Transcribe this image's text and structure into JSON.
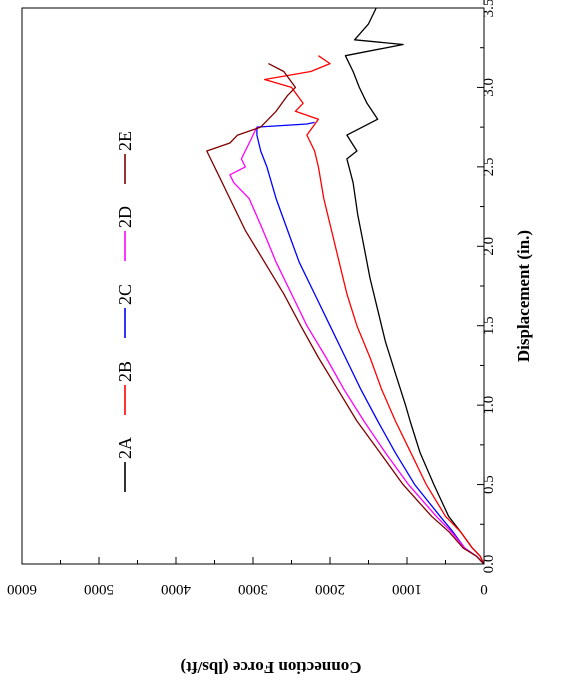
{
  "chart_data": {
    "type": "line",
    "orientation": "rotated-90-clockwise",
    "xlabel": "Displacement (in.)",
    "ylabel": "Connection Force (lbs/ft)",
    "xlim": [
      0,
      3.5
    ],
    "ylim": [
      0,
      6000
    ],
    "x_ticks": [
      "0.0",
      "0.5",
      "1.0",
      "1.5",
      "2.0",
      "2.5",
      "3.0",
      "3.5"
    ],
    "y_ticks": [
      "0",
      "1000",
      "2000",
      "3000",
      "4000",
      "5000",
      "6000"
    ],
    "grid": false,
    "legend_placement": "top-left",
    "series": [
      {
        "name": "2A",
        "color": "#000000",
        "points": [
          [
            0,
            0
          ],
          [
            0.05,
            50
          ],
          [
            0.1,
            150
          ],
          [
            0.2,
            300
          ],
          [
            0.3,
            460
          ],
          [
            0.5,
            650
          ],
          [
            0.7,
            830
          ],
          [
            0.9,
            960
          ],
          [
            1.0,
            1020
          ],
          [
            1.2,
            1150
          ],
          [
            1.4,
            1280
          ],
          [
            1.6,
            1380
          ],
          [
            1.8,
            1480
          ],
          [
            2.0,
            1560
          ],
          [
            2.2,
            1640
          ],
          [
            2.4,
            1700
          ],
          [
            2.55,
            1780
          ],
          [
            2.6,
            1650
          ],
          [
            2.7,
            1780
          ],
          [
            2.8,
            1380
          ],
          [
            2.9,
            1520
          ],
          [
            3.0,
            1620
          ],
          [
            3.1,
            1700
          ],
          [
            3.2,
            1800
          ],
          [
            3.27,
            1050
          ],
          [
            3.3,
            1680
          ],
          [
            3.4,
            1500
          ],
          [
            3.5,
            1400
          ]
        ]
      },
      {
        "name": "2B",
        "color": "#ff0000",
        "points": [
          [
            0,
            0
          ],
          [
            0.05,
            50
          ],
          [
            0.1,
            150
          ],
          [
            0.2,
            300
          ],
          [
            0.3,
            500
          ],
          [
            0.5,
            750
          ],
          [
            0.7,
            950
          ],
          [
            0.9,
            1150
          ],
          [
            1.1,
            1330
          ],
          [
            1.3,
            1480
          ],
          [
            1.5,
            1650
          ],
          [
            1.7,
            1780
          ],
          [
            1.9,
            1880
          ],
          [
            2.1,
            1980
          ],
          [
            2.3,
            2080
          ],
          [
            2.5,
            2150
          ],
          [
            2.6,
            2200
          ],
          [
            2.7,
            2300
          ],
          [
            2.8,
            2150
          ],
          [
            2.85,
            2450
          ],
          [
            2.9,
            2350
          ],
          [
            3.0,
            2500
          ],
          [
            3.05,
            2850
          ],
          [
            3.1,
            2250
          ],
          [
            3.15,
            2000
          ],
          [
            3.2,
            2150
          ]
        ]
      },
      {
        "name": "2C",
        "color": "#0000ff",
        "points": [
          [
            0,
            0
          ],
          [
            0.05,
            100
          ],
          [
            0.1,
            250
          ],
          [
            0.2,
            400
          ],
          [
            0.3,
            570
          ],
          [
            0.5,
            900
          ],
          [
            0.7,
            1150
          ],
          [
            0.9,
            1380
          ],
          [
            1.1,
            1600
          ],
          [
            1.3,
            1800
          ],
          [
            1.5,
            2000
          ],
          [
            1.7,
            2200
          ],
          [
            1.9,
            2400
          ],
          [
            2.1,
            2550
          ],
          [
            2.3,
            2700
          ],
          [
            2.5,
            2820
          ],
          [
            2.6,
            2900
          ],
          [
            2.7,
            2950
          ],
          [
            2.75,
            2950
          ],
          [
            2.77,
            2300
          ],
          [
            2.78,
            2200
          ]
        ]
      },
      {
        "name": "2D",
        "color": "#ff00ff",
        "points": [
          [
            0,
            0
          ],
          [
            0.05,
            100
          ],
          [
            0.1,
            250
          ],
          [
            0.2,
            420
          ],
          [
            0.3,
            620
          ],
          [
            0.5,
            980
          ],
          [
            0.7,
            1280
          ],
          [
            0.9,
            1560
          ],
          [
            1.1,
            1820
          ],
          [
            1.3,
            2050
          ],
          [
            1.5,
            2300
          ],
          [
            1.7,
            2500
          ],
          [
            1.9,
            2700
          ],
          [
            2.1,
            2870
          ],
          [
            2.3,
            3050
          ],
          [
            2.4,
            3250
          ],
          [
            2.45,
            3300
          ],
          [
            2.5,
            3100
          ],
          [
            2.55,
            3150
          ],
          [
            2.65,
            3050
          ],
          [
            2.7,
            3000
          ],
          [
            2.75,
            2950
          ]
        ]
      },
      {
        "name": "2E",
        "color": "#800000",
        "points": [
          [
            0,
            0
          ],
          [
            0.05,
            100
          ],
          [
            0.1,
            270
          ],
          [
            0.2,
            450
          ],
          [
            0.3,
            680
          ],
          [
            0.5,
            1050
          ],
          [
            0.7,
            1350
          ],
          [
            0.9,
            1650
          ],
          [
            1.1,
            1900
          ],
          [
            1.3,
            2150
          ],
          [
            1.5,
            2380
          ],
          [
            1.7,
            2600
          ],
          [
            1.9,
            2850
          ],
          [
            2.1,
            3100
          ],
          [
            2.3,
            3300
          ],
          [
            2.45,
            3450
          ],
          [
            2.55,
            3550
          ],
          [
            2.6,
            3600
          ],
          [
            2.65,
            3300
          ],
          [
            2.7,
            3200
          ],
          [
            2.75,
            2900
          ],
          [
            2.85,
            2700
          ],
          [
            2.95,
            2550
          ],
          [
            3.0,
            2450
          ],
          [
            3.1,
            2600
          ],
          [
            3.15,
            2800
          ]
        ]
      }
    ]
  }
}
